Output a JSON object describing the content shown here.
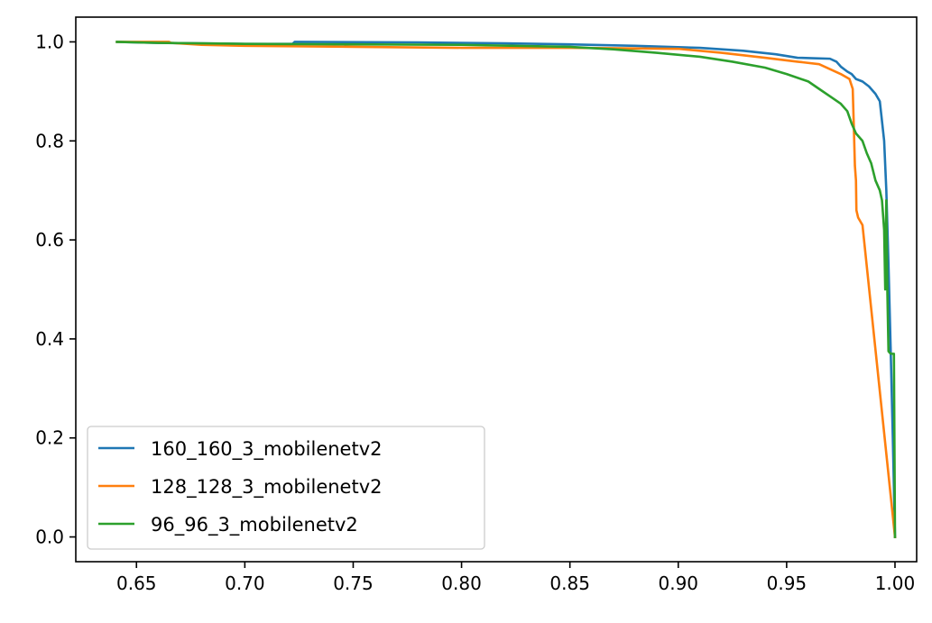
{
  "chart_data": {
    "type": "line",
    "title": "",
    "xlabel": "",
    "ylabel": "",
    "xlim": [
      0.622,
      1.01
    ],
    "ylim": [
      -0.05,
      1.05
    ],
    "x_ticks": [
      0.65,
      0.7,
      0.75,
      0.8,
      0.85,
      0.9,
      0.95,
      1.0
    ],
    "y_ticks": [
      0.0,
      0.2,
      0.4,
      0.6,
      0.8,
      1.0
    ],
    "x_tick_labels": [
      "0.65",
      "0.70",
      "0.75",
      "0.80",
      "0.85",
      "0.90",
      "0.95",
      "1.00"
    ],
    "y_tick_labels": [
      "0.0",
      "0.2",
      "0.4",
      "0.6",
      "0.8",
      "1.0"
    ],
    "grid": false,
    "legend_position": "lower-left",
    "series": [
      {
        "name": "160_160_3_mobilenetv2",
        "color": "#1f77b4",
        "points": [
          [
            0.641,
            1.0
          ],
          [
            0.66,
            0.998
          ],
          [
            0.7,
            0.996
          ],
          [
            0.722,
            0.996
          ],
          [
            0.723,
            1.0
          ],
          [
            0.78,
            0.999
          ],
          [
            0.82,
            0.997
          ],
          [
            0.85,
            0.995
          ],
          [
            0.88,
            0.992
          ],
          [
            0.91,
            0.988
          ],
          [
            0.93,
            0.982
          ],
          [
            0.945,
            0.975
          ],
          [
            0.955,
            0.968
          ],
          [
            0.962,
            0.967
          ],
          [
            0.97,
            0.966
          ],
          [
            0.973,
            0.96
          ],
          [
            0.975,
            0.95
          ],
          [
            0.978,
            0.94
          ],
          [
            0.98,
            0.935
          ],
          [
            0.982,
            0.925
          ],
          [
            0.985,
            0.92
          ],
          [
            0.988,
            0.91
          ],
          [
            0.991,
            0.895
          ],
          [
            0.993,
            0.88
          ],
          [
            0.994,
            0.84
          ],
          [
            0.995,
            0.8
          ],
          [
            0.996,
            0.7
          ],
          [
            0.997,
            0.55
          ],
          [
            0.998,
            0.38
          ],
          [
            0.999,
            0.2
          ],
          [
            1.0,
            0.0
          ]
        ]
      },
      {
        "name": "128_128_3_mobilenetv2",
        "color": "#ff7f0e",
        "points": [
          [
            0.641,
            1.0
          ],
          [
            0.665,
            1.0
          ],
          [
            0.666,
            0.998
          ],
          [
            0.68,
            0.994
          ],
          [
            0.7,
            0.992
          ],
          [
            0.75,
            0.99
          ],
          [
            0.8,
            0.988
          ],
          [
            0.85,
            0.988
          ],
          [
            0.9,
            0.986
          ],
          [
            0.92,
            0.978
          ],
          [
            0.94,
            0.968
          ],
          [
            0.955,
            0.96
          ],
          [
            0.965,
            0.955
          ],
          [
            0.97,
            0.945
          ],
          [
            0.975,
            0.935
          ],
          [
            0.979,
            0.925
          ],
          [
            0.9805,
            0.905
          ],
          [
            0.981,
            0.83
          ],
          [
            0.9815,
            0.75
          ],
          [
            0.982,
            0.72
          ],
          [
            0.9822,
            0.66
          ],
          [
            0.983,
            0.645
          ],
          [
            0.985,
            0.63
          ],
          [
            1.0,
            0.0
          ]
        ]
      },
      {
        "name": "96_96_3_mobilenetv2",
        "color": "#2ca02c",
        "points": [
          [
            0.641,
            1.0
          ],
          [
            0.66,
            0.998
          ],
          [
            0.7,
            0.996
          ],
          [
            0.75,
            0.995
          ],
          [
            0.8,
            0.994
          ],
          [
            0.85,
            0.99
          ],
          [
            0.87,
            0.985
          ],
          [
            0.89,
            0.978
          ],
          [
            0.91,
            0.97
          ],
          [
            0.925,
            0.96
          ],
          [
            0.94,
            0.948
          ],
          [
            0.95,
            0.935
          ],
          [
            0.96,
            0.92
          ],
          [
            0.965,
            0.905
          ],
          [
            0.97,
            0.89
          ],
          [
            0.975,
            0.875
          ],
          [
            0.978,
            0.86
          ],
          [
            0.98,
            0.835
          ],
          [
            0.982,
            0.815
          ],
          [
            0.985,
            0.8
          ],
          [
            0.987,
            0.775
          ],
          [
            0.989,
            0.755
          ],
          [
            0.991,
            0.72
          ],
          [
            0.993,
            0.7
          ],
          [
            0.994,
            0.68
          ],
          [
            0.995,
            0.62
          ],
          [
            0.9955,
            0.5
          ],
          [
            0.996,
            0.68
          ],
          [
            0.9965,
            0.49
          ],
          [
            0.997,
            0.375
          ],
          [
            0.998,
            0.37
          ],
          [
            0.9995,
            0.37
          ],
          [
            1.0,
            0.0
          ]
        ]
      }
    ]
  }
}
